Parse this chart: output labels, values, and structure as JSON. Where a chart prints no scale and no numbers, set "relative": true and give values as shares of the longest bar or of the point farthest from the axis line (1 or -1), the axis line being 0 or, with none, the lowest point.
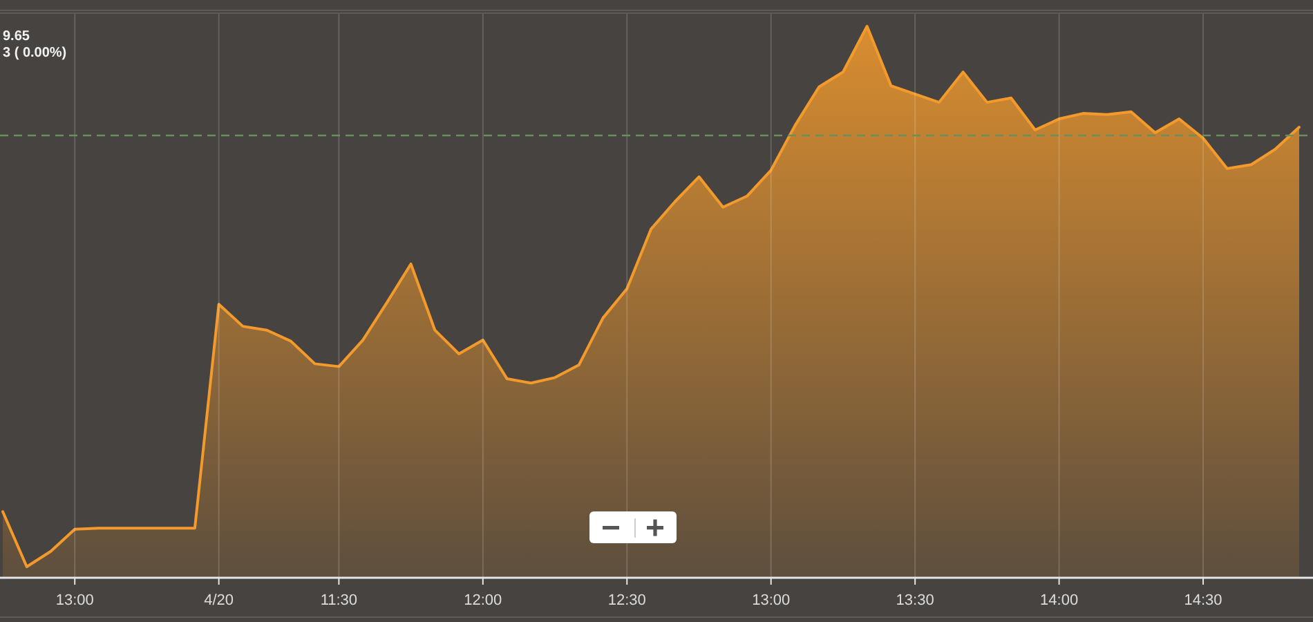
{
  "chart_data": {
    "type": "area",
    "relative": true,
    "categories": [
      null,
      null,
      null,
      "13:00",
      null,
      null,
      null,
      null,
      null,
      "4/20",
      null,
      null,
      null,
      null,
      "11:30",
      null,
      null,
      null,
      null,
      null,
      "12:00",
      null,
      null,
      null,
      null,
      null,
      "12:30",
      null,
      null,
      null,
      null,
      null,
      "13:00",
      null,
      null,
      null,
      null,
      null,
      "13:30",
      null,
      null,
      null,
      null,
      null,
      "14:00",
      null,
      null,
      null,
      null,
      null,
      "14:30",
      null,
      null,
      null,
      null
    ],
    "values": [
      0.12,
      0.02,
      0.048,
      0.088,
      0.09,
      0.09,
      0.09,
      0.09,
      0.09,
      0.496,
      0.456,
      0.449,
      0.429,
      0.388,
      0.383,
      0.431,
      0.499,
      0.569,
      0.449,
      0.406,
      0.431,
      0.361,
      0.353,
      0.363,
      0.386,
      0.471,
      0.524,
      0.632,
      0.682,
      0.727,
      0.672,
      0.692,
      0.739,
      0.82,
      0.89,
      0.917,
      1,
      0.892,
      0.877,
      0.862,
      0.917,
      0.862,
      0.87,
      0.812,
      0.832,
      0.842,
      0.84,
      0.845,
      0.807,
      0.832,
      0.797,
      0.742,
      0.749,
      0.777,
      0.817
    ],
    "color": "#f39a2c",
    "grid": "x",
    "ref_lines": [
      {
        "axis": "y",
        "value": 0.802,
        "color": "#6b8f5e",
        "line_style": "dashed"
      }
    ],
    "annotations": [
      "9.65",
      "3 ( 0.00%)"
    ]
  }
}
